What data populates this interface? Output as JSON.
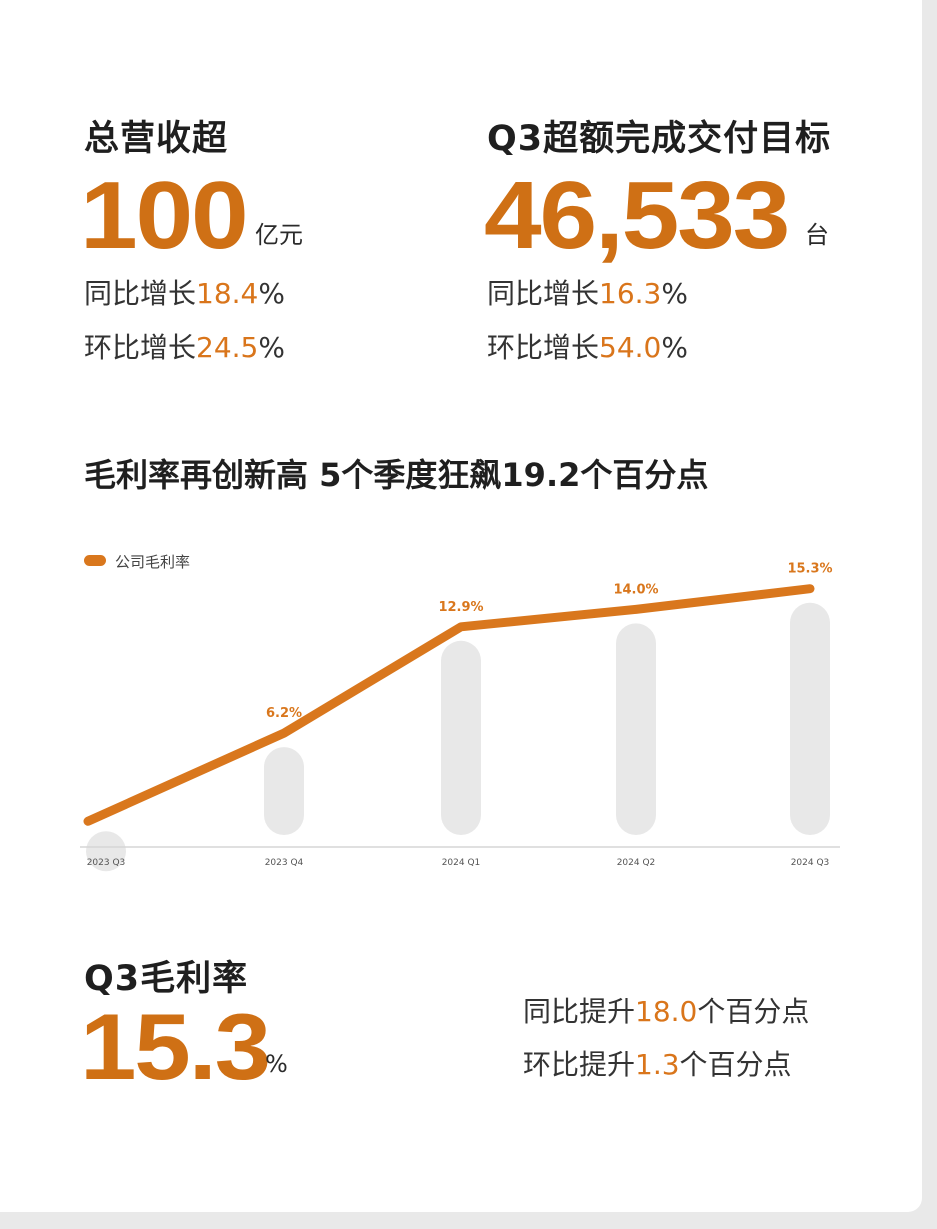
{
  "revenue": {
    "heading": "总营收超",
    "value": "100",
    "unit": "亿元",
    "yoy_prefix": "同比增长",
    "yoy_value": "18.4",
    "yoy_suffix": "%",
    "qoq_prefix": "环比增长",
    "qoq_value": "24.5",
    "qoq_suffix": "%"
  },
  "delivery": {
    "heading": "Q3超额完成交付目标",
    "value": "46,533",
    "unit": "台",
    "yoy_prefix": "同比增长",
    "yoy_value": "16.3",
    "yoy_suffix": "%",
    "qoq_prefix": "环比增长",
    "qoq_value": "54.0",
    "qoq_suffix": "%"
  },
  "chart_section": {
    "title": "毛利率再创新高 5个季度狂飙19.2个百分点"
  },
  "chart_data": {
    "type": "line",
    "categories": [
      "2023 Q3",
      "2023 Q4",
      "2024 Q1",
      "2024 Q2",
      "2024 Q3"
    ],
    "series": [
      {
        "name": "公司毛利率",
        "values": [
          null,
          6.2,
          12.9,
          14.0,
          15.3
        ],
        "labels": [
          "",
          "6.2%",
          "12.9%",
          "14.0%",
          "15.3%"
        ]
      }
    ],
    "ylim": [
      -4,
      19
    ],
    "grid": false,
    "legend": "top-left",
    "colors": {
      "line": "#d9771d",
      "bar": "#e8e8e8",
      "label": "#d9771d",
      "axis": "#d6d6d6"
    }
  },
  "margin": {
    "heading": "Q3毛利率",
    "value": "15.3",
    "unit": "%",
    "yoy_prefix": "同比提升",
    "yoy_value": "18.0",
    "yoy_suffix": "个百分点",
    "qoq_prefix": "环比提升",
    "qoq_value": "1.3",
    "qoq_suffix": "个百分点"
  },
  "theme": {
    "accent": "#cf7015",
    "text": "#222222",
    "background": "#ffffff"
  }
}
